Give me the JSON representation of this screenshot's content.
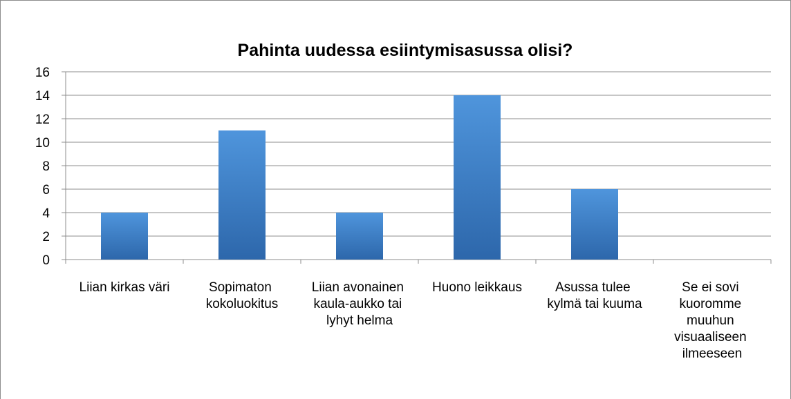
{
  "chart_data": {
    "type": "bar",
    "title": "Pahinta uudessa esiintymisasussa olisi?",
    "categories": [
      "Liian kirkas väri",
      "Sopimaton kokoluokitus",
      "Liian avonainen kaula-aukko tai lyhyt helma",
      "Huono leikkaus",
      "Asussa tulee kylmä tai kuuma",
      "Se ei sovi kuoromme muuhun visuaaliseen ilmeeseen"
    ],
    "values": [
      4,
      11,
      4,
      14,
      6,
      0
    ],
    "color": "#4a8dd6",
    "ylim": [
      0,
      16
    ],
    "yticks": [
      0,
      2,
      4,
      6,
      8,
      10,
      12,
      14,
      16
    ],
    "grid": true
  }
}
